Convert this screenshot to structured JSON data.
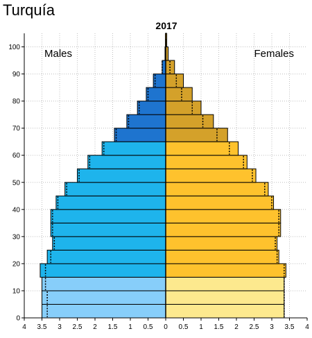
{
  "page_title": "Turquía",
  "chart_data": {
    "type": "bar",
    "orientation": "horizontal-population-pyramid",
    "title": "2017",
    "left_label": "Males",
    "right_label": "Females",
    "age_groups": [
      "0-4",
      "5-9",
      "10-14",
      "15-19",
      "20-24",
      "25-29",
      "30-34",
      "35-39",
      "40-44",
      "45-49",
      "50-54",
      "55-59",
      "60-64",
      "65-69",
      "70-74",
      "75-79",
      "80-84",
      "85-89",
      "90-94",
      "95-99",
      "100+"
    ],
    "y_ticks": [
      "0",
      "10",
      "20",
      "30",
      "40",
      "50",
      "60",
      "70",
      "80",
      "90",
      "100"
    ],
    "x_ticks": [
      "4",
      "3.5",
      "3",
      "2.5",
      "2",
      "1.5",
      "1",
      "0.5",
      "0",
      "0.5",
      "1",
      "1.5",
      "2",
      "2.5",
      "3",
      "3.5",
      "4"
    ],
    "xlim": [
      -4,
      4
    ],
    "ylim": [
      0,
      105
    ],
    "series": [
      {
        "name": "Males",
        "values": [
          3.5,
          3.5,
          3.5,
          3.55,
          3.35,
          3.2,
          3.25,
          3.25,
          3.1,
          2.85,
          2.5,
          2.2,
          1.8,
          1.45,
          1.1,
          0.8,
          0.55,
          0.35,
          0.1,
          0.02,
          0.01
        ],
        "reference": [
          3.35,
          3.35,
          3.4,
          3.4,
          3.25,
          3.15,
          3.2,
          3.2,
          3.05,
          2.8,
          2.45,
          2.15,
          1.75,
          1.4,
          1.05,
          0.75,
          0.5,
          0.3,
          0.1,
          0.02,
          0.01
        ]
      },
      {
        "name": "Females",
        "values": [
          3.35,
          3.35,
          3.35,
          3.4,
          3.2,
          3.15,
          3.25,
          3.25,
          3.05,
          2.9,
          2.55,
          2.3,
          2.05,
          1.75,
          1.35,
          1.0,
          0.75,
          0.5,
          0.25,
          0.07,
          0.03
        ],
        "reference": [
          3.35,
          3.35,
          3.35,
          3.35,
          3.15,
          3.1,
          3.2,
          3.2,
          3.0,
          2.8,
          2.45,
          2.2,
          1.8,
          1.45,
          1.05,
          0.75,
          0.45,
          0.3,
          0.12,
          0.03,
          0.01
        ]
      }
    ],
    "colors": {
      "male_young": "#87cefa",
      "male_adult": "#1eb4ec",
      "male_old": "#1e74cf",
      "female_young": "#fde98e",
      "female_adult": "#fec22d",
      "female_old": "#d4a12a",
      "bar_stroke": "#000000",
      "grid": "#bfbfbf"
    },
    "grid": true
  }
}
